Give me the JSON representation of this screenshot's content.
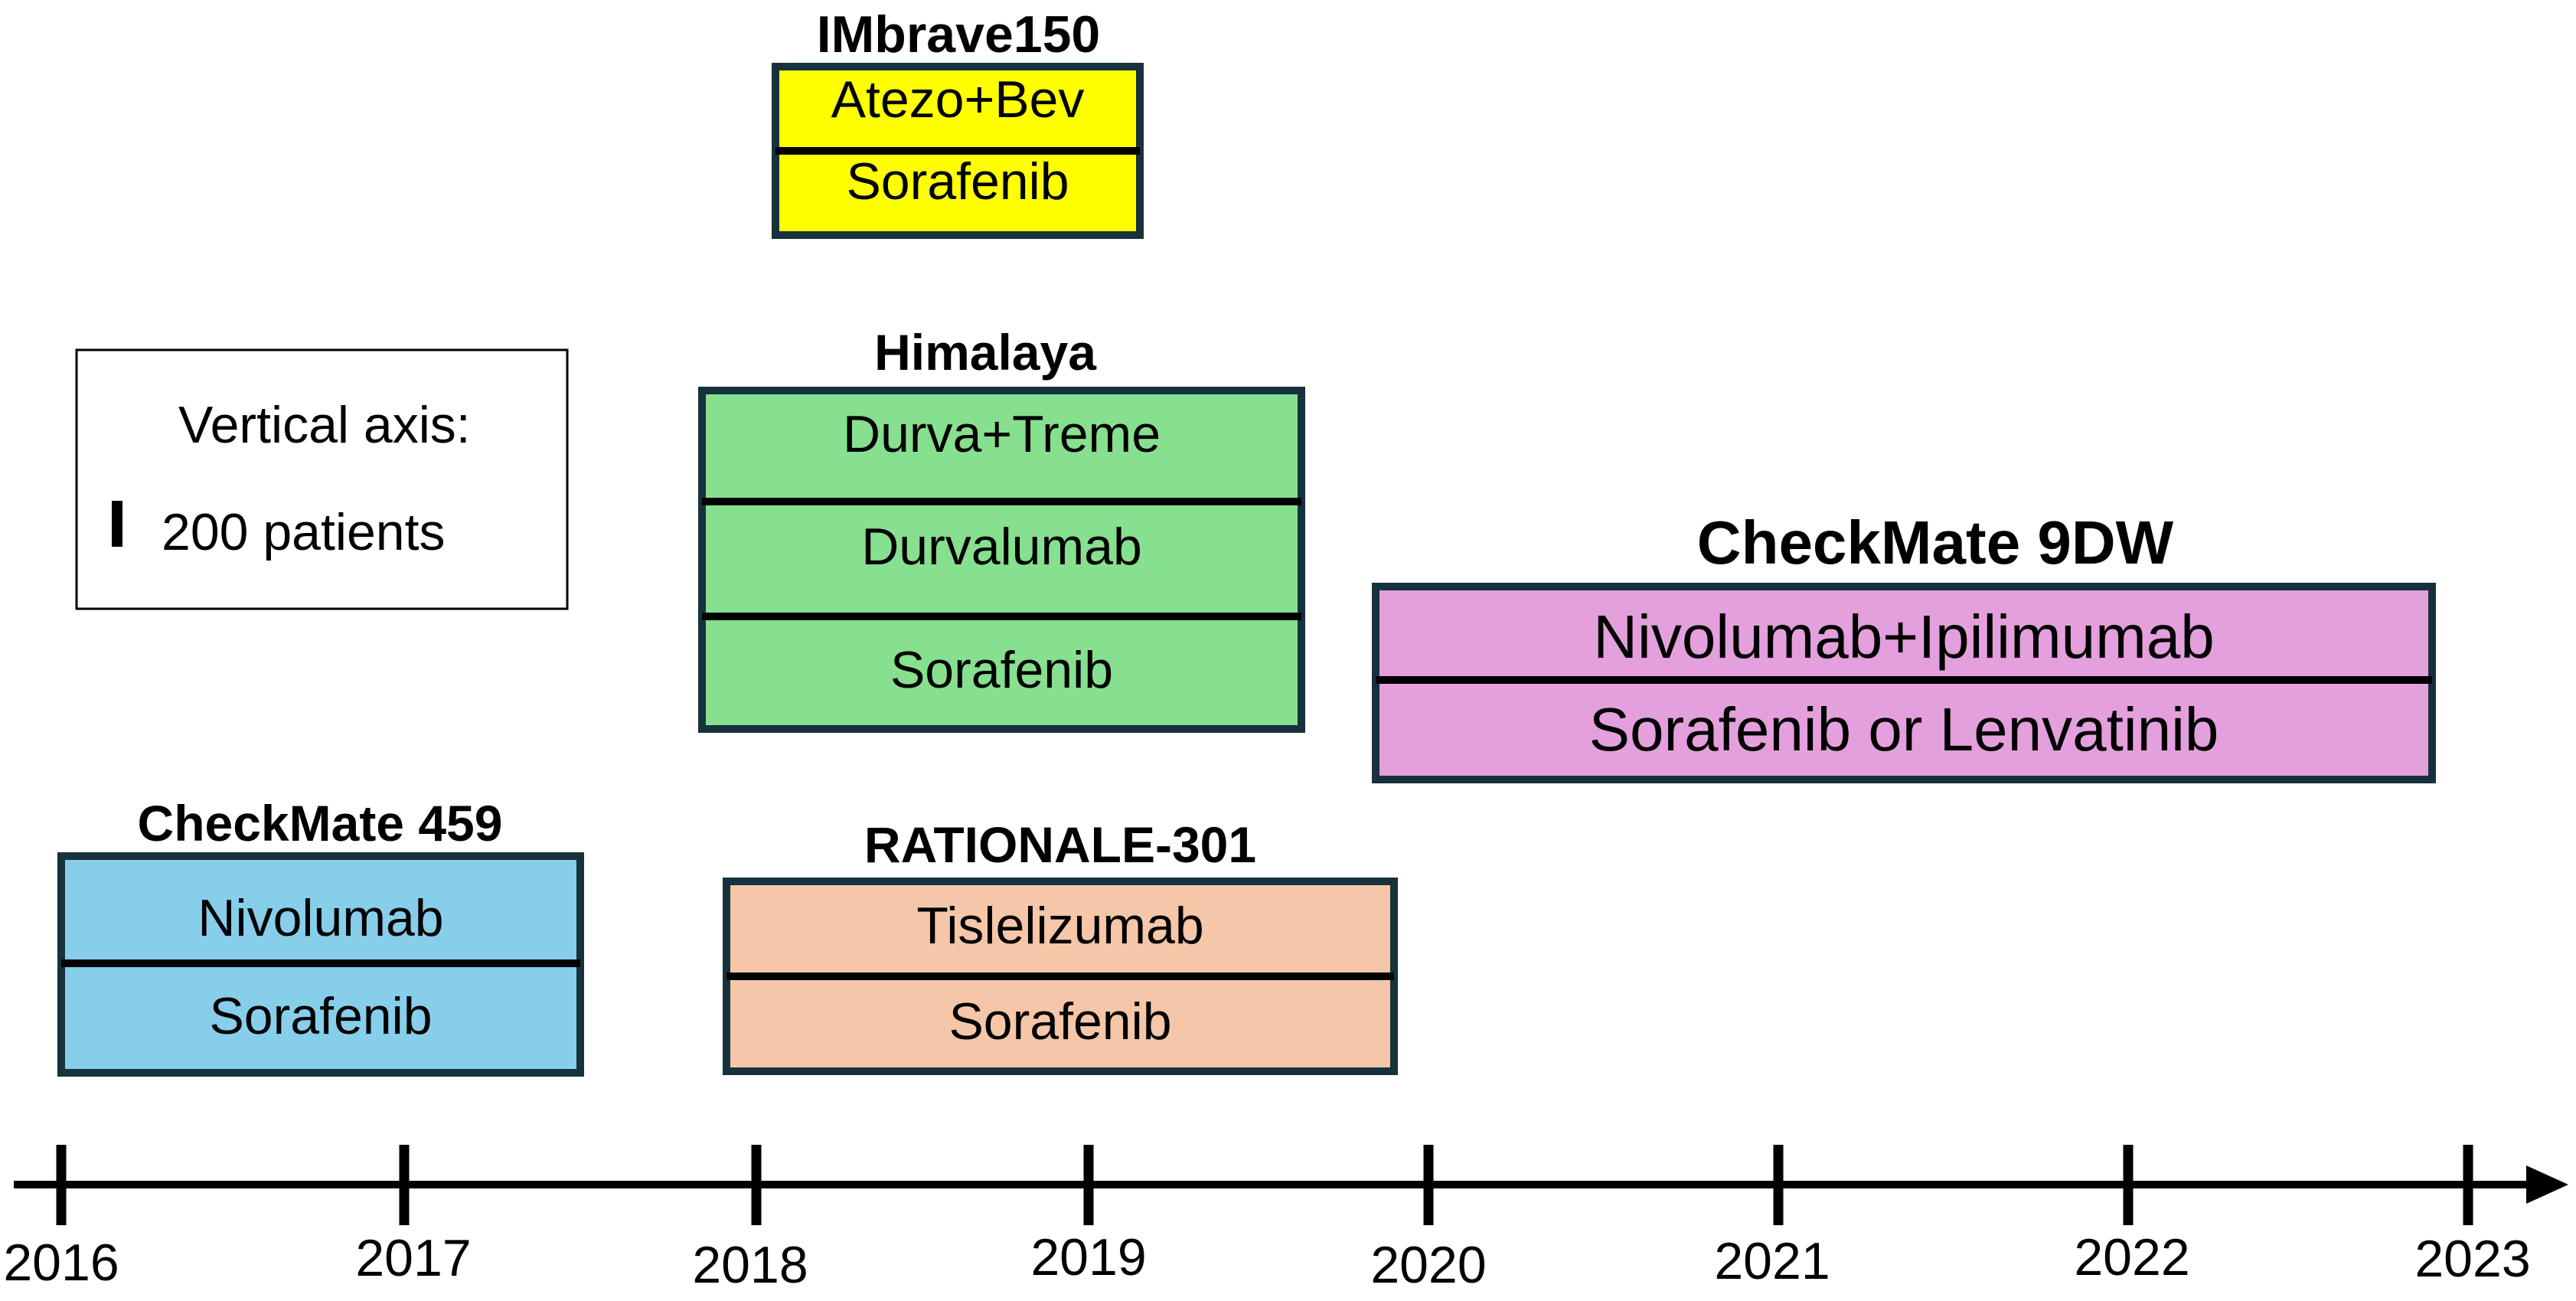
{
  "colors": {
    "border": "#17313d",
    "axis": "#000000",
    "imbrave": "#ffff00",
    "himalaya": "#86e08f",
    "checkmate9dw": "#e4a0dc",
    "checkmate459": "#87ceeb",
    "rationale": "#f5c6a8"
  },
  "legend": {
    "line1": "Vertical axis:",
    "line2": "200 patients"
  },
  "axis": {
    "ticks": [
      "2016",
      "2017",
      "2018",
      "2019",
      "2020",
      "2021",
      "2022",
      "2023"
    ]
  },
  "trials": [
    {
      "id": "imbrave150",
      "title": "IMbrave150",
      "color_key": "imbrave",
      "arms": [
        "Atezo+Bev",
        "Sorafenib"
      ]
    },
    {
      "id": "himalaya",
      "title": "Himalaya",
      "color_key": "himalaya",
      "arms": [
        "Durva+Treme",
        "Durvalumab",
        "Sorafenib"
      ]
    },
    {
      "id": "checkmate-9dw",
      "title": "CheckMate 9DW",
      "color_key": "checkmate9dw",
      "arms": [
        "Nivolumab+Ipilimumab",
        "Sorafenib or Lenvatinib"
      ]
    },
    {
      "id": "checkmate-459",
      "title": "CheckMate 459",
      "color_key": "checkmate459",
      "arms": [
        "Nivolumab",
        "Sorafenib"
      ]
    },
    {
      "id": "rationale-301",
      "title": "RATIONALE-301",
      "color_key": "rationale",
      "arms": [
        "Tislelizumab",
        "Sorafenib"
      ]
    }
  ]
}
